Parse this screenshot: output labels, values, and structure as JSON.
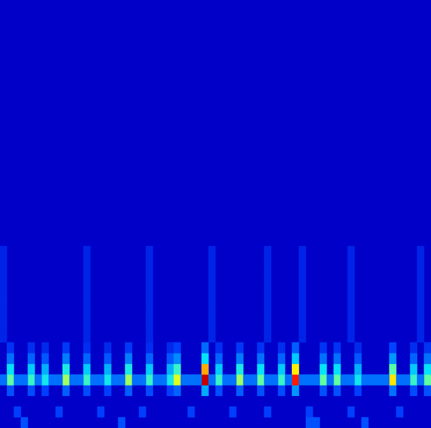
{
  "chart_data": {
    "type": "heatmap",
    "tick_labels": false,
    "grid": false,
    "xlim": [
      0,
      61
    ],
    "ylim": [
      0,
      39
    ],
    "zlim": [
      0,
      1
    ],
    "cells": [
      [
        1,
        3,
        0.15
      ],
      [
        1,
        4,
        0.5
      ],
      [
        1,
        5,
        0.38
      ],
      [
        1,
        6,
        0.2
      ],
      [
        1,
        7,
        0.1
      ],
      [
        4,
        3,
        0.14
      ],
      [
        4,
        4,
        0.45
      ],
      [
        4,
        5,
        0.34
      ],
      [
        4,
        6,
        0.18
      ],
      [
        4,
        7,
        0.09
      ],
      [
        6,
        3,
        0.12
      ],
      [
        6,
        4,
        0.4
      ],
      [
        6,
        5,
        0.3
      ],
      [
        6,
        6,
        0.16
      ],
      [
        6,
        7,
        0.08
      ],
      [
        9,
        3,
        0.17
      ],
      [
        9,
        4,
        0.55
      ],
      [
        9,
        5,
        0.41
      ],
      [
        9,
        6,
        0.22
      ],
      [
        9,
        7,
        0.11
      ],
      [
        12,
        3,
        0.14
      ],
      [
        12,
        4,
        0.45
      ],
      [
        12,
        5,
        0.34
      ],
      [
        12,
        6,
        0.18
      ],
      [
        12,
        7,
        0.09
      ],
      [
        15,
        3,
        0.12
      ],
      [
        15,
        4,
        0.4
      ],
      [
        15,
        5,
        0.3
      ],
      [
        15,
        6,
        0.16
      ],
      [
        15,
        7,
        0.08
      ],
      [
        18,
        3,
        0.17
      ],
      [
        18,
        4,
        0.55
      ],
      [
        18,
        5,
        0.41
      ],
      [
        18,
        6,
        0.22
      ],
      [
        18,
        7,
        0.11
      ],
      [
        21,
        3,
        0.14
      ],
      [
        21,
        4,
        0.45
      ],
      [
        21,
        5,
        0.34
      ],
      [
        21,
        6,
        0.18
      ],
      [
        21,
        7,
        0.09
      ],
      [
        24,
        3,
        0.12
      ],
      [
        24,
        4,
        0.4
      ],
      [
        24,
        5,
        0.3
      ],
      [
        24,
        6,
        0.16
      ],
      [
        24,
        7,
        0.08
      ],
      [
        25,
        3,
        0.18
      ],
      [
        25,
        4,
        0.6
      ],
      [
        25,
        5,
        0.45
      ],
      [
        25,
        6,
        0.24
      ],
      [
        25,
        7,
        0.12
      ],
      [
        29,
        3,
        0.29
      ],
      [
        29,
        4,
        0.95
      ],
      [
        29,
        5,
        0.71
      ],
      [
        29,
        6,
        0.38
      ],
      [
        29,
        7,
        0.19
      ],
      [
        31,
        3,
        0.14
      ],
      [
        31,
        4,
        0.45
      ],
      [
        31,
        5,
        0.34
      ],
      [
        31,
        6,
        0.18
      ],
      [
        31,
        7,
        0.09
      ],
      [
        34,
        3,
        0.17
      ],
      [
        34,
        4,
        0.55
      ],
      [
        34,
        5,
        0.41
      ],
      [
        34,
        6,
        0.22
      ],
      [
        34,
        7,
        0.11
      ],
      [
        37,
        3,
        0.15
      ],
      [
        37,
        4,
        0.5
      ],
      [
        37,
        5,
        0.38
      ],
      [
        37,
        6,
        0.2
      ],
      [
        37,
        7,
        0.1
      ],
      [
        40,
        3,
        0.14
      ],
      [
        40,
        4,
        0.45
      ],
      [
        40,
        5,
        0.34
      ],
      [
        40,
        6,
        0.18
      ],
      [
        40,
        7,
        0.09
      ],
      [
        42,
        3,
        0.26
      ],
      [
        42,
        4,
        0.85
      ],
      [
        42,
        5,
        0.64
      ],
      [
        42,
        6,
        0.34
      ],
      [
        42,
        7,
        0.17
      ],
      [
        46,
        3,
        0.15
      ],
      [
        46,
        4,
        0.5
      ],
      [
        46,
        5,
        0.38
      ],
      [
        46,
        6,
        0.2
      ],
      [
        46,
        7,
        0.1
      ],
      [
        48,
        3,
        0.15
      ],
      [
        48,
        4,
        0.5
      ],
      [
        48,
        5,
        0.38
      ],
      [
        48,
        6,
        0.2
      ],
      [
        48,
        7,
        0.1
      ],
      [
        51,
        3,
        0.12
      ],
      [
        51,
        4,
        0.4
      ],
      [
        51,
        5,
        0.3
      ],
      [
        51,
        6,
        0.16
      ],
      [
        51,
        7,
        0.08
      ],
      [
        56,
        3,
        0.2
      ],
      [
        56,
        4,
        0.65
      ],
      [
        56,
        5,
        0.49
      ],
      [
        56,
        6,
        0.26
      ],
      [
        56,
        7,
        0.13
      ],
      [
        59,
        3,
        0.14
      ],
      [
        59,
        4,
        0.45
      ],
      [
        59,
        5,
        0.34
      ],
      [
        59,
        6,
        0.18
      ],
      [
        59,
        7,
        0.09
      ],
      [
        61,
        3,
        0.15
      ],
      [
        61,
        4,
        0.5
      ],
      [
        61,
        5,
        0.38
      ],
      [
        61,
        6,
        0.2
      ],
      [
        61,
        7,
        0.1
      ],
      [
        0,
        4,
        0.2
      ],
      [
        2,
        4,
        0.2
      ],
      [
        3,
        4,
        0.2
      ],
      [
        5,
        4,
        0.2
      ],
      [
        7,
        4,
        0.2
      ],
      [
        8,
        4,
        0.2
      ],
      [
        10,
        4,
        0.2
      ],
      [
        11,
        4,
        0.2
      ],
      [
        13,
        4,
        0.2
      ],
      [
        14,
        4,
        0.2
      ],
      [
        16,
        4,
        0.2
      ],
      [
        17,
        4,
        0.2
      ],
      [
        19,
        4,
        0.2
      ],
      [
        20,
        4,
        0.2
      ],
      [
        22,
        4,
        0.2
      ],
      [
        23,
        4,
        0.2
      ],
      [
        26,
        4,
        0.2
      ],
      [
        27,
        4,
        0.2
      ],
      [
        28,
        4,
        0.2
      ],
      [
        30,
        4,
        0.2
      ],
      [
        32,
        4,
        0.2
      ],
      [
        33,
        4,
        0.2
      ],
      [
        35,
        4,
        0.2
      ],
      [
        36,
        4,
        0.2
      ],
      [
        38,
        4,
        0.2
      ],
      [
        39,
        4,
        0.2
      ],
      [
        41,
        4,
        0.2
      ],
      [
        43,
        4,
        0.2
      ],
      [
        44,
        4,
        0.2
      ],
      [
        45,
        4,
        0.2
      ],
      [
        47,
        4,
        0.2
      ],
      [
        49,
        4,
        0.2
      ],
      [
        50,
        4,
        0.2
      ],
      [
        52,
        4,
        0.2
      ],
      [
        53,
        4,
        0.2
      ],
      [
        54,
        4,
        0.2
      ],
      [
        55,
        4,
        0.2
      ],
      [
        57,
        4,
        0.2
      ],
      [
        58,
        4,
        0.2
      ],
      [
        60,
        4,
        0.2
      ],
      [
        2,
        1,
        0.12
      ],
      [
        8,
        1,
        0.12
      ],
      [
        14,
        1,
        0.12
      ],
      [
        20,
        1,
        0.12
      ],
      [
        27,
        1,
        0.12
      ],
      [
        33,
        1,
        0.12
      ],
      [
        38,
        1,
        0.12
      ],
      [
        44,
        1,
        0.12
      ],
      [
        50,
        1,
        0.12
      ],
      [
        57,
        1,
        0.12
      ],
      [
        3,
        0,
        0.15
      ],
      [
        17,
        0,
        0.15
      ],
      [
        44,
        0,
        0.15
      ],
      [
        45,
        0,
        0.15
      ],
      [
        52,
        0,
        0.15
      ],
      [
        0,
        8,
        0.07
      ],
      [
        0,
        9,
        0.07
      ],
      [
        0,
        10,
        0.07
      ],
      [
        0,
        11,
        0.07
      ],
      [
        0,
        12,
        0.07
      ],
      [
        0,
        13,
        0.07
      ],
      [
        0,
        14,
        0.07
      ],
      [
        0,
        15,
        0.07
      ],
      [
        0,
        16,
        0.07
      ],
      [
        12,
        8,
        0.07
      ],
      [
        12,
        9,
        0.07
      ],
      [
        12,
        10,
        0.07
      ],
      [
        12,
        11,
        0.07
      ],
      [
        12,
        12,
        0.07
      ],
      [
        12,
        13,
        0.07
      ],
      [
        12,
        14,
        0.07
      ],
      [
        12,
        15,
        0.07
      ],
      [
        12,
        16,
        0.07
      ],
      [
        21,
        8,
        0.07
      ],
      [
        21,
        9,
        0.07
      ],
      [
        21,
        10,
        0.07
      ],
      [
        21,
        11,
        0.07
      ],
      [
        21,
        12,
        0.07
      ],
      [
        21,
        13,
        0.07
      ],
      [
        21,
        14,
        0.07
      ],
      [
        21,
        15,
        0.07
      ],
      [
        21,
        16,
        0.07
      ],
      [
        30,
        8,
        0.07
      ],
      [
        30,
        9,
        0.07
      ],
      [
        30,
        10,
        0.07
      ],
      [
        30,
        11,
        0.07
      ],
      [
        30,
        12,
        0.07
      ],
      [
        30,
        13,
        0.07
      ],
      [
        30,
        14,
        0.07
      ],
      [
        30,
        15,
        0.07
      ],
      [
        30,
        16,
        0.07
      ],
      [
        38,
        8,
        0.07
      ],
      [
        38,
        9,
        0.07
      ],
      [
        38,
        10,
        0.07
      ],
      [
        38,
        11,
        0.07
      ],
      [
        38,
        12,
        0.07
      ],
      [
        38,
        13,
        0.07
      ],
      [
        38,
        14,
        0.07
      ],
      [
        38,
        15,
        0.07
      ],
      [
        38,
        16,
        0.07
      ],
      [
        43,
        8,
        0.07
      ],
      [
        43,
        9,
        0.07
      ],
      [
        43,
        10,
        0.07
      ],
      [
        43,
        11,
        0.07
      ],
      [
        43,
        12,
        0.07
      ],
      [
        43,
        13,
        0.07
      ],
      [
        43,
        14,
        0.07
      ],
      [
        43,
        15,
        0.07
      ],
      [
        43,
        16,
        0.07
      ],
      [
        50,
        8,
        0.07
      ],
      [
        50,
        9,
        0.07
      ],
      [
        50,
        10,
        0.07
      ],
      [
        50,
        11,
        0.07
      ],
      [
        50,
        12,
        0.07
      ],
      [
        50,
        13,
        0.07
      ],
      [
        50,
        14,
        0.07
      ],
      [
        50,
        15,
        0.07
      ],
      [
        50,
        16,
        0.07
      ],
      [
        60,
        8,
        0.07
      ],
      [
        60,
        9,
        0.07
      ],
      [
        60,
        10,
        0.07
      ],
      [
        60,
        11,
        0.07
      ],
      [
        60,
        12,
        0.07
      ],
      [
        60,
        13,
        0.07
      ],
      [
        60,
        14,
        0.07
      ],
      [
        60,
        15,
        0.07
      ],
      [
        60,
        16,
        0.07
      ]
    ]
  }
}
